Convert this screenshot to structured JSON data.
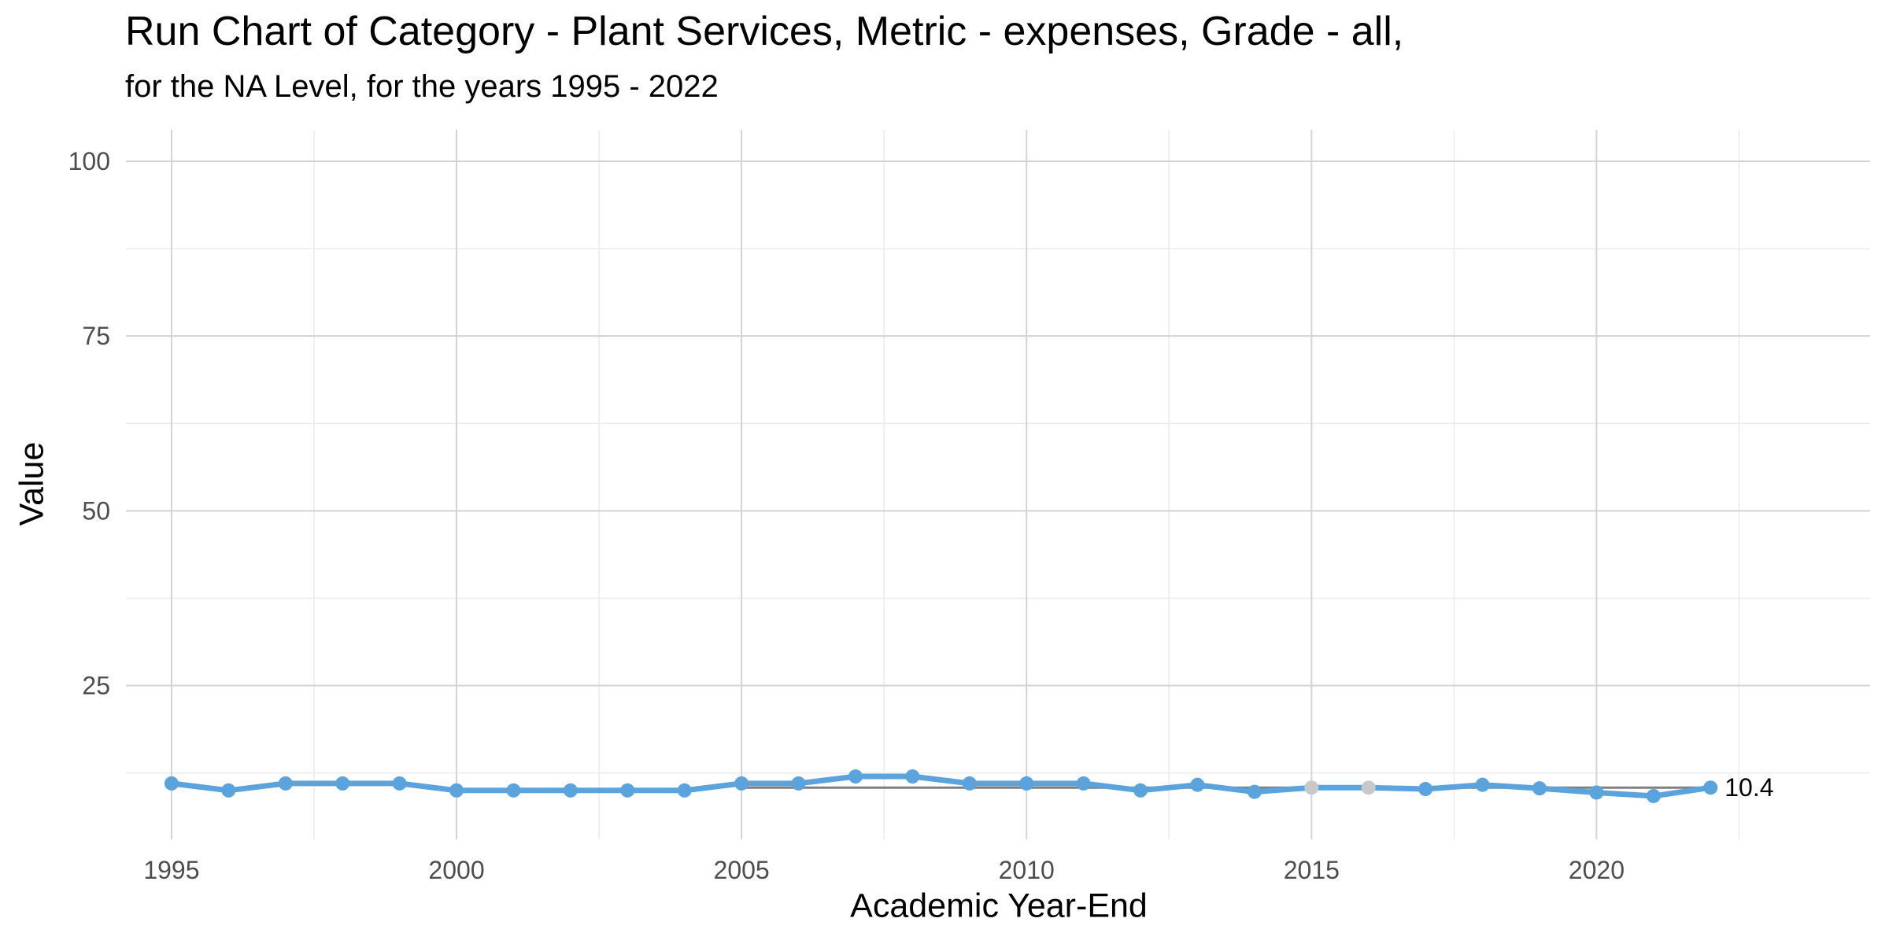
{
  "chart_data": {
    "type": "line",
    "title": "Run Chart of Category -  Plant Services, Metric - expenses, Grade - all,",
    "subtitle": "for the NA Level, for the years 1995 - 2022",
    "xlabel": "Academic Year-End",
    "ylabel": "Value",
    "xlim": [
      1994.2,
      2024.8
    ],
    "ylim": [
      3,
      104.5
    ],
    "x_ticks": [
      1995,
      2000,
      2005,
      2010,
      2015,
      2020
    ],
    "y_ticks": [
      25,
      50,
      75,
      100
    ],
    "grid": true,
    "legend": "none",
    "series": [
      {
        "color": "#5ba3dd",
        "x": [
          1995,
          1996,
          1997,
          1998,
          1999,
          2000,
          2001,
          2002,
          2003,
          2004,
          2005,
          2006,
          2007,
          2008,
          2009,
          2010,
          2011,
          2012,
          2013,
          2014,
          2015,
          2016,
          2017,
          2018,
          2019,
          2020,
          2021,
          2022
        ],
        "values": [
          11,
          10,
          11,
          11,
          11,
          10,
          10,
          10,
          10,
          10,
          11,
          11,
          12,
          12,
          11,
          11,
          11,
          10,
          10.8,
          9.8,
          10.4,
          10.4,
          10.2,
          10.8,
          10.3,
          9.7,
          9.2,
          10.4
        ],
        "point_colors": [
          "#5ba3dd",
          "#5ba3dd",
          "#5ba3dd",
          "#5ba3dd",
          "#5ba3dd",
          "#5ba3dd",
          "#5ba3dd",
          "#5ba3dd",
          "#5ba3dd",
          "#5ba3dd",
          "#5ba3dd",
          "#5ba3dd",
          "#5ba3dd",
          "#5ba3dd",
          "#5ba3dd",
          "#5ba3dd",
          "#5ba3dd",
          "#5ba3dd",
          "#5ba3dd",
          "#5ba3dd",
          "#c8c8c8",
          "#c8c8c8",
          "#5ba3dd",
          "#5ba3dd",
          "#5ba3dd",
          "#5ba3dd",
          "#5ba3dd",
          "#5ba3dd"
        ]
      }
    ],
    "median_line": {
      "value": 10.4,
      "x": [
        2005,
        2022
      ],
      "color": "#808080"
    },
    "end_label": "10.4"
  }
}
